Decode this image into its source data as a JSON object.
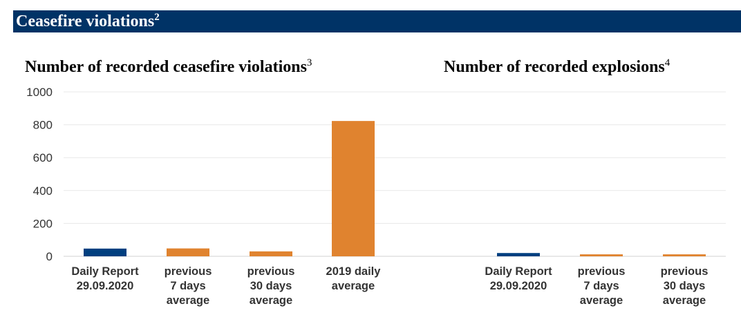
{
  "section_title": "Ceasefire violations",
  "section_title_sup": "2",
  "chart_data": [
    {
      "type": "bar",
      "title": "Number of recorded ceasefire violations",
      "title_sup": "3",
      "categories": [
        [
          "Daily Report",
          "29.09.2020"
        ],
        [
          "previous",
          "7 days",
          "average"
        ],
        [
          "previous",
          "30 days",
          "average"
        ],
        [
          "2019 daily",
          "average"
        ]
      ],
      "values": [
        47,
        48,
        30,
        823
      ],
      "bar_colors": [
        "#003f7f",
        "#e0832f",
        "#e0832f",
        "#e0832f"
      ],
      "ylim": [
        0,
        1000
      ],
      "yticks": [
        "0",
        "200",
        "400",
        "600",
        "800",
        "1000"
      ],
      "grid": true,
      "legend": "none"
    },
    {
      "type": "bar",
      "title": "Number of recorded explosions",
      "title_sup": "4",
      "categories": [
        [
          "Daily Report",
          "29.09.2020"
        ],
        [
          "previous",
          "7 days",
          "average"
        ],
        [
          "previous",
          "30 days",
          "average"
        ]
      ],
      "values": [
        20,
        12,
        12
      ],
      "bar_colors": [
        "#003f7f",
        "#e0832f",
        "#e0832f"
      ],
      "ylim": [
        0,
        1000
      ],
      "grid": true,
      "legend": "none"
    }
  ]
}
